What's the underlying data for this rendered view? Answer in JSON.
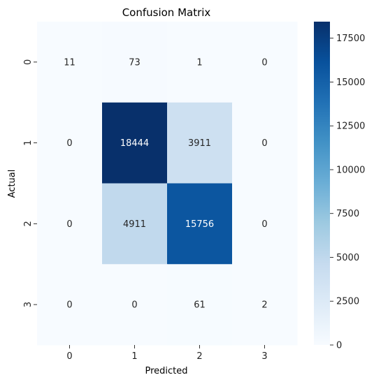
{
  "chart_data": {
    "type": "heatmap",
    "title": "Confusion Matrix",
    "xlabel": "Predicted",
    "ylabel": "Actual",
    "x_categories": [
      "0",
      "1",
      "2",
      "3"
    ],
    "y_categories": [
      "0",
      "1",
      "2",
      "3"
    ],
    "values": [
      [
        11,
        73,
        1,
        0
      ],
      [
        0,
        18444,
        3911,
        0
      ],
      [
        0,
        4911,
        15756,
        0
      ],
      [
        0,
        0,
        61,
        2
      ]
    ],
    "colormap": "Blues",
    "color_range": [
      0,
      18444
    ],
    "colorbar_ticks": [
      0,
      2500,
      5000,
      7500,
      10000,
      12500,
      15000,
      17500
    ],
    "colorbar_tick_labels": [
      "0",
      "2500",
      "5000",
      "7500",
      "10000",
      "12500",
      "15000",
      "17500"
    ],
    "colors": {
      "low": "#f7fbff",
      "high": "#08306b",
      "text_dark": "#262626",
      "text_light": "#ffffff"
    }
  }
}
